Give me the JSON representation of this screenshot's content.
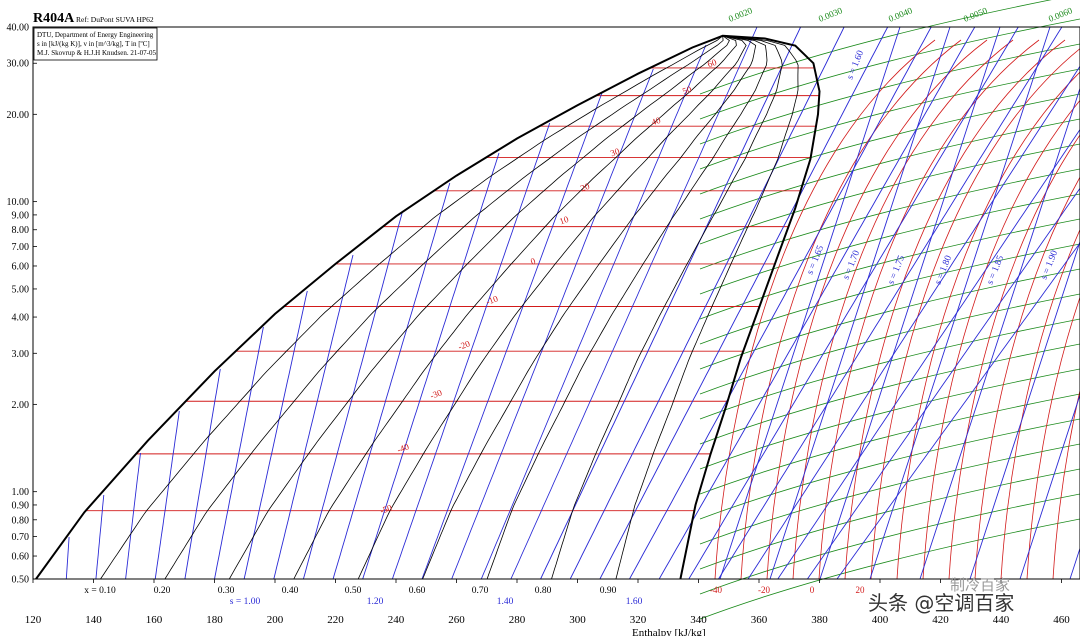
{
  "chart_data": {
    "type": "line",
    "title": "R404A",
    "subtitle": "Ref: DuPont SUVA HP62",
    "info_lines": [
      "DTU, Department of Energy Engineering",
      "s in [kJ/(kg K)], v in [m^3/kg], T in [ºC]",
      "M.J. Skovrup & H.J.H Knudsen. 21-07-05"
    ],
    "xlabel": "Enthalpy [kJ/kg]",
    "ylabel": "",
    "xlim": [
      120,
      465
    ],
    "ylim": [
      0.5,
      40
    ],
    "yscale": "log",
    "x_ticks": [
      120,
      140,
      160,
      180,
      200,
      220,
      240,
      260,
      280,
      300,
      320,
      340,
      360,
      380,
      400,
      420,
      440,
      460
    ],
    "y_ticks": [
      "0.50",
      "0.60",
      "0.70",
      "0.80",
      "0.90",
      "1.00",
      "2.00",
      "3.00",
      "4.00",
      "5.00",
      "6.00",
      "7.00",
      "8.00",
      "9.00",
      "10.00",
      "20.00",
      "30.00",
      "40.00"
    ],
    "critical_point": {
      "h": 348,
      "p": 37.3
    },
    "saturated_liquid": [
      {
        "h": 121,
        "p": 0.5
      },
      {
        "h": 137,
        "p": 0.85
      },
      {
        "h": 158,
        "p": 1.5
      },
      {
        "h": 180,
        "p": 2.6
      },
      {
        "h": 200,
        "p": 4.1
      },
      {
        "h": 220,
        "p": 6.1
      },
      {
        "h": 240,
        "p": 8.9
      },
      {
        "h": 260,
        "p": 12.3
      },
      {
        "h": 280,
        "p": 16.5
      },
      {
        "h": 300,
        "p": 21.5
      },
      {
        "h": 320,
        "p": 27.6
      },
      {
        "h": 338,
        "p": 34.0
      },
      {
        "h": 348,
        "p": 37.3
      }
    ],
    "saturated_vapor": [
      {
        "h": 348,
        "p": 37.3
      },
      {
        "h": 362,
        "p": 36.5
      },
      {
        "h": 372,
        "p": 34.5
      },
      {
        "h": 378,
        "p": 30.0
      },
      {
        "h": 380,
        "p": 24.0
      },
      {
        "h": 379.5,
        "p": 20.0
      },
      {
        "h": 377,
        "p": 14.0
      },
      {
        "h": 372,
        "p": 9.5
      },
      {
        "h": 366,
        "p": 6.4
      },
      {
        "h": 360,
        "p": 4.3
      },
      {
        "h": 354,
        "p": 2.9
      },
      {
        "h": 349,
        "p": 1.95
      },
      {
        "h": 344,
        "p": 1.35
      },
      {
        "h": 339,
        "p": 0.9
      },
      {
        "h": 334,
        "p": 0.5
      }
    ],
    "quality_labels": [
      "x = 0.10",
      "0.20",
      "0.30",
      "0.40",
      "0.50",
      "0.60",
      "0.70",
      "0.80",
      "0.90"
    ],
    "entropy_labels_bottom": [
      "s = 1.00",
      "1.20",
      "1.40",
      "1.60"
    ],
    "entropy_labels_right": [
      "s = 1.60",
      "s = 1.65",
      "s = 1.70",
      "s = 1.75",
      "s = 1.80",
      "s = 1.85",
      "s = 1.90"
    ],
    "isotherm_labels_dome": [
      "60",
      "50",
      "40",
      "30",
      "20",
      "10",
      "0",
      "-10",
      "-20",
      "-30",
      "-40",
      "-50"
    ],
    "isotherm_labels_bottom": [
      "-40",
      "-20",
      "0",
      "20"
    ],
    "volume_labels": [
      "0.0020",
      "0.0030",
      "0.0040",
      "0.0050",
      "0.0060"
    ],
    "isotherms": [
      {
        "t": 60,
        "p": 28.9
      },
      {
        "t": 50,
        "p": 23.2
      },
      {
        "t": 40,
        "p": 18.2
      },
      {
        "t": 30,
        "p": 14.2
      },
      {
        "t": 20,
        "p": 10.9
      },
      {
        "t": 10,
        "p": 8.2
      },
      {
        "t": 0,
        "p": 6.1
      },
      {
        "t": -10,
        "p": 4.35
      },
      {
        "t": -20,
        "p": 3.05
      },
      {
        "t": -30,
        "p": 2.05
      },
      {
        "t": -40,
        "p": 1.35
      },
      {
        "t": -50,
        "p": 0.86
      }
    ],
    "grid": false,
    "legend": "none"
  },
  "watermark": {
    "text": "头条 @空调百家",
    "faded_text": "制冷百家"
  },
  "colors": {
    "dome": "#000000",
    "quality": "#000000",
    "entropy": "#2b2bd6",
    "isotherm": "#d21a1a",
    "isochore": "#1b8a1b"
  }
}
